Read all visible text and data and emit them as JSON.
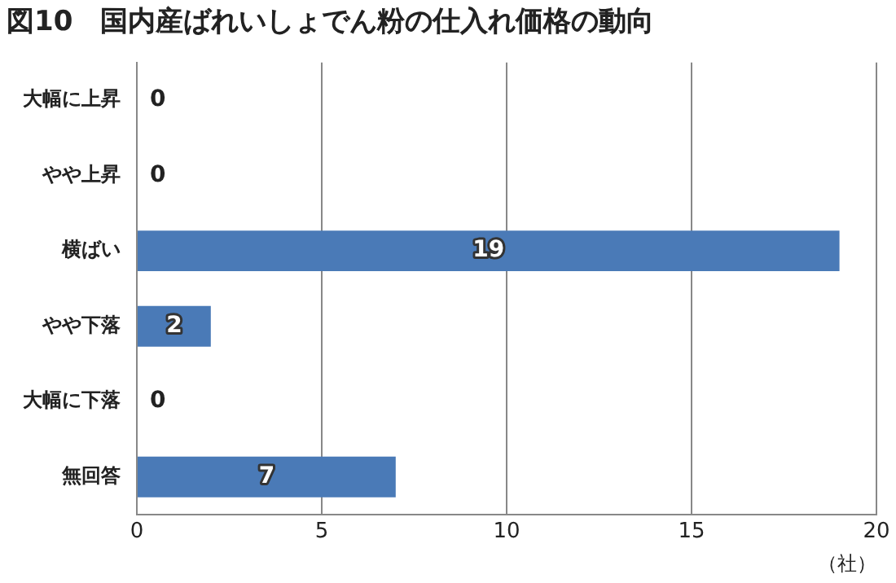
{
  "chart_data": {
    "type": "bar",
    "orientation": "horizontal",
    "title": "図10　国内産ばれいしょでん粉の仕入れ価格の動向",
    "xlabel": "（社）",
    "categories": [
      "大幅に上昇",
      "やや上昇",
      "横ばい",
      "やや下落",
      "大幅に下落",
      "無回答"
    ],
    "values": [
      0,
      0,
      19,
      2,
      0,
      7
    ],
    "color": "#4a7ab7",
    "xlim": [
      0,
      20
    ],
    "xticks": [
      0,
      5,
      10,
      15,
      20
    ],
    "grid": "x",
    "data_labels": true
  }
}
